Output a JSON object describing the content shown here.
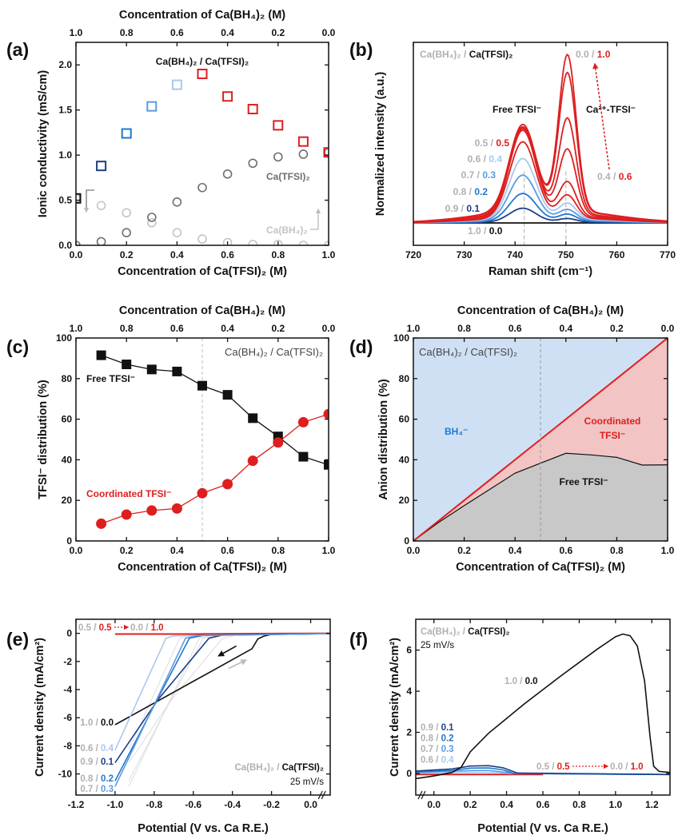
{
  "separator": " / ",
  "chart_data": [
    {
      "panel": "(a)",
      "type": "scatter",
      "xlabel": "Concentration of Ca(TFSI)₂ (M)",
      "top_xlabel": "Concentration of Ca(BH₄)₂ (M)",
      "ylabel": "Ionic conductivity (mS/cm)",
      "xlim": [
        0,
        1
      ],
      "ylim": [
        0,
        2.25
      ],
      "xticks": [
        "0.0",
        "0.2",
        "0.4",
        "0.6",
        "0.8",
        "1.0"
      ],
      "top_xticks": [
        "1.0",
        "0.8",
        "0.6",
        "0.4",
        "0.2",
        "0.0"
      ],
      "yticks": [
        "0.0",
        "0.5",
        "1.0",
        "1.5",
        "2.0"
      ],
      "x": [
        0,
        0.1,
        0.2,
        0.3,
        0.4,
        0.5,
        0.6,
        0.7,
        0.8,
        0.9,
        1.0
      ],
      "series": [
        {
          "name": "Ca(BH₄)₂ / Ca(TFSI)₂",
          "marker": "open-square",
          "values": [
            0.52,
            0.88,
            1.24,
            1.54,
            1.78,
            1.9,
            1.65,
            1.51,
            1.33,
            1.15,
            1.03
          ],
          "colors": [
            "#111111",
            "#1b3f8a",
            "#1f78d0",
            "#5b9be0",
            "#a9c8ee",
            "#dd1f1f",
            "#dd1f1f",
            "#dd1f1f",
            "#dd1f1f",
            "#dd1f1f",
            "#dd1f1f"
          ]
        },
        {
          "name": "Ca(TFSI)₂",
          "marker": "open-circle",
          "color": "#6e6e6e",
          "values": [
            0.0,
            0.04,
            0.14,
            0.31,
            0.48,
            0.64,
            0.79,
            0.91,
            0.98,
            1.01,
            1.03
          ]
        },
        {
          "name": "Ca(BH₄)₂",
          "marker": "open-circle",
          "color": "#c4c4c4",
          "values": [
            0.52,
            0.44,
            0.36,
            0.25,
            0.14,
            0.07,
            0.03,
            0.01,
            0.01,
            0.0,
            0.0
          ]
        }
      ]
    },
    {
      "panel": "(b)",
      "type": "line",
      "xlabel": "Raman shift (cm⁻¹)",
      "ylabel": "Normalized intensity (a.u.)",
      "xlim": [
        720,
        770
      ],
      "ylim": [
        -0.13,
        1.05
      ],
      "xticks": [
        "720",
        "730",
        "740",
        "750",
        "760",
        "770"
      ],
      "yticks": [],
      "legend_title": {
        "bh4": "Ca(BH₄)₂",
        "tfsi": "Ca(TFSI)₂"
      },
      "peaks": {
        "free": {
          "label": "Free TFSI⁻",
          "position": 741.8
        },
        "coordinated": {
          "label": "Ca²⁺-TFSI⁻",
          "position": 750
        }
      },
      "series": [
        {
          "bh4": "1.0",
          "tfsi": "0.0",
          "color": "#111111",
          "free_peak": 0,
          "coordinated_peak": 0,
          "label_shown": true
        },
        {
          "bh4": "0.9",
          "tfsi": "0.1",
          "color": "#1b3f8a",
          "free_peak": 0.08,
          "coordinated_peak": 0.02,
          "label_shown": true
        },
        {
          "bh4": "0.8",
          "tfsi": "0.2",
          "color": "#1f78d0",
          "free_peak": 0.16,
          "coordinated_peak": 0.04,
          "label_shown": true
        },
        {
          "bh4": "0.7",
          "tfsi": "0.3",
          "color": "#5b9be0",
          "free_peak": 0.26,
          "coordinated_peak": 0.06,
          "label_shown": true
        },
        {
          "bh4": "0.6",
          "tfsi": "0.4",
          "color": "#a9c8ee",
          "free_peak": 0.35,
          "coordinated_peak": 0.09,
          "label_shown": true
        },
        {
          "bh4": "0.5",
          "tfsi": "0.5",
          "color": "#dd1f1f",
          "free_peak": 0.44,
          "coordinated_peak": 0.13,
          "label_shown": true
        },
        {
          "bh4": "0.4",
          "tfsi": "0.6",
          "color": "#dd1f1f",
          "free_peak": 0.5,
          "coordinated_peak": 0.2,
          "label_shown": true
        },
        {
          "bh4": "0.3",
          "tfsi": "0.7",
          "color": "#dd1f1f",
          "free_peak": 0.5,
          "coordinated_peak": 0.38,
          "label_shown": false
        },
        {
          "bh4": "0.2",
          "tfsi": "0.8",
          "color": "#dd1f1f",
          "free_peak": 0.5,
          "coordinated_peak": 0.55,
          "label_shown": false
        },
        {
          "bh4": "0.1",
          "tfsi": "0.9",
          "color": "#dd1f1f",
          "free_peak": 0.5,
          "coordinated_peak": 0.8,
          "label_shown": false
        },
        {
          "bh4": "0.0",
          "tfsi": "1.0",
          "color": "#dd1f1f",
          "free_peak": 0.48,
          "coordinated_peak": 0.9,
          "label_shown": true
        }
      ]
    },
    {
      "panel": "(c)",
      "type": "line",
      "xlabel": "Concentration of Ca(TFSI)₂ (M)",
      "top_xlabel": "Concentration of Ca(BH₄)₂ (M)",
      "ylabel": "TFSI⁻ distribution (%)",
      "xlim": [
        0,
        1
      ],
      "ylim": [
        0,
        100
      ],
      "xticks": [
        "0.0",
        "0.2",
        "0.4",
        "0.6",
        "0.8",
        "1.0"
      ],
      "top_xticks": [
        "1.0",
        "0.8",
        "0.6",
        "0.4",
        "0.2",
        "0.0"
      ],
      "yticks": [
        "0",
        "20",
        "40",
        "60",
        "80",
        "100"
      ],
      "annotation": "Ca(BH₄)₂ / Ca(TFSI)₂",
      "reference_line_x": 0.5,
      "x": [
        0.1,
        0.2,
        0.3,
        0.4,
        0.5,
        0.6,
        0.7,
        0.8,
        0.9,
        1.0
      ],
      "series": [
        {
          "name": "Free TFSI⁻",
          "marker": "square",
          "color": "#111111",
          "values": [
            91.5,
            87,
            84.5,
            83.5,
            76.5,
            72,
            60.5,
            51.5,
            41.5,
            37.5
          ]
        },
        {
          "name": "Coordinated TFSI⁻",
          "marker": "circle",
          "color": "#dd1f1f",
          "values": [
            8.5,
            13,
            15,
            16,
            23.5,
            28,
            39.5,
            48.5,
            58.5,
            62.5
          ]
        }
      ]
    },
    {
      "panel": "(d)",
      "type": "area",
      "xlabel": "Concentration of Ca(TFSI)₂ (M)",
      "top_xlabel": "Concentration of Ca(BH₄)₂ (M)",
      "ylabel": "Anion distribution (%)",
      "xlim": [
        0,
        1
      ],
      "ylim": [
        0,
        100
      ],
      "xticks": [
        "0.0",
        "0.2",
        "0.4",
        "0.6",
        "0.8",
        "1.0"
      ],
      "top_xticks": [
        "1.0",
        "0.8",
        "0.6",
        "0.4",
        "0.2",
        "0.0"
      ],
      "yticks": [
        "0",
        "20",
        "40",
        "60",
        "80",
        "100"
      ],
      "annotation": "Ca(BH₄)₂ / Ca(TFSI)₂",
      "reference_line_x": 0.5,
      "x": [
        0,
        0.1,
        0.2,
        0.3,
        0.4,
        0.5,
        0.6,
        0.7,
        0.8,
        0.9,
        1.0
      ],
      "series": [
        {
          "name": "Free TFSI⁻",
          "color": "#c8c8c8",
          "values": [
            0,
            9.2,
            17.4,
            25.4,
            33.4,
            38.3,
            43.2,
            42.4,
            41.2,
            37.4,
            37.5
          ]
        },
        {
          "name": "Coordinated TFSI⁻",
          "label_lines": [
            "Coordinated",
            "TFSI⁻"
          ],
          "color": "#f3c4c4",
          "line_color": "#dd1f1f",
          "values": [
            0,
            10,
            20,
            30,
            40,
            50,
            60,
            70,
            80,
            90,
            100
          ]
        },
        {
          "name": "BH₄⁻",
          "color": "#cfe0f5",
          "label_color": "#1f78d0",
          "values": [
            100,
            100,
            100,
            100,
            100,
            100,
            100,
            100,
            100,
            100,
            100
          ]
        }
      ]
    },
    {
      "panel": "(e)",
      "type": "line",
      "xlabel": "Potential (V vs. Ca R.E.)",
      "ylabel": "Current density (mA/cm²)",
      "xlim": [
        -1.2,
        0.1
      ],
      "ylim": [
        -11.5,
        1
      ],
      "xticks": [
        "-1.2",
        "-1.0",
        "-0.8",
        "-0.6",
        "-0.4",
        "-0.2",
        "0.0"
      ],
      "yticks": [
        "0",
        "-2",
        "-4",
        "-6",
        "-8",
        "-10"
      ],
      "axis_break": "x-right",
      "legend_title": {
        "bh4": "Ca(BH₄)₂",
        "tfsi": "Ca(TFSI)₂"
      },
      "scan_rate": "25 mV/s",
      "red_group": {
        "from": {
          "bh4": "0.5",
          "tfsi": "0.5"
        },
        "to": {
          "bh4": "0.0",
          "tfsi": "1.0"
        },
        "color": "#dd1f1f",
        "points": [
          [
            -1.0,
            -0.05
          ],
          [
            -0.6,
            -0.05
          ],
          [
            -0.3,
            -0.02
          ],
          [
            0.1,
            0.0
          ]
        ]
      },
      "series": [
        {
          "bh4": "1.0",
          "tfsi": "0.0",
          "color": "#111111",
          "points": [
            [
              0.1,
              -0.02
            ],
            [
              -0.2,
              -0.08
            ],
            [
              -0.24,
              -0.2
            ],
            [
              -0.27,
              -0.4
            ],
            [
              -0.3,
              -1.1
            ],
            [
              -1.0,
              -6.5
            ]
          ]
        },
        {
          "bh4": "0.6",
          "tfsi": "0.4",
          "color": "#a9c8ee",
          "points": [
            [
              0.1,
              -0.02
            ],
            [
              -0.7,
              -0.18
            ],
            [
              -0.74,
              -0.35
            ],
            [
              -1.0,
              -8.3
            ]
          ]
        },
        {
          "bh4": "0.9",
          "tfsi": "0.1",
          "color": "#1b3f8a",
          "points": [
            [
              0.1,
              -0.02
            ],
            [
              -0.45,
              -0.12
            ],
            [
              -0.52,
              -0.35
            ],
            [
              -0.78,
              -4.7
            ],
            [
              -1.0,
              -9.2
            ]
          ]
        },
        {
          "bh4": "0.8",
          "tfsi": "0.2",
          "color": "#1f78d0",
          "points": [
            [
              0.1,
              -0.02
            ],
            [
              -0.55,
              -0.15
            ],
            [
              -0.62,
              -0.35
            ],
            [
              -0.78,
              -4.6
            ],
            [
              -1.0,
              -10.5
            ]
          ]
        },
        {
          "bh4": "0.7",
          "tfsi": "0.3",
          "color": "#5b9be0",
          "points": [
            [
              0.1,
              -0.02
            ],
            [
              -0.58,
              -0.15
            ],
            [
              -0.64,
              -0.35
            ],
            [
              -0.78,
              -4.5
            ],
            [
              -1.0,
              -10.9
            ]
          ]
        }
      ]
    },
    {
      "panel": "(f)",
      "type": "line",
      "xlabel": "Potential (V vs. Ca R.E.)",
      "ylabel": "Current density (mA/cm²)",
      "xlim": [
        -0.1,
        1.3
      ],
      "ylim": [
        -1.05,
        7.5
      ],
      "xticks": [
        "0.0",
        "0.2",
        "0.4",
        "0.6",
        "0.8",
        "1.0",
        "1.2"
      ],
      "yticks": [
        "0",
        "2",
        "4",
        "6"
      ],
      "axis_break": "x-left",
      "legend_title": {
        "bh4": "Ca(BH₄)₂",
        "tfsi": "Ca(TFSI)₂"
      },
      "scan_rate": "25 mV/s",
      "red_group": {
        "from": {
          "bh4": "0.5",
          "tfsi": "0.5"
        },
        "to": {
          "bh4": "0.0",
          "tfsi": "1.0"
        },
        "color": "#dd1f1f",
        "points": [
          [
            -0.1,
            -0.05
          ],
          [
            0.6,
            -0.05
          ]
        ]
      },
      "series": [
        {
          "bh4": "1.0",
          "tfsi": "0.0",
          "color": "#111111",
          "points": [
            [
              -0.1,
              -0.25
            ],
            [
              0.0,
              -0.12
            ],
            [
              0.1,
              0.05
            ],
            [
              0.15,
              0.3
            ],
            [
              0.2,
              1.05
            ],
            [
              0.3,
              1.95
            ],
            [
              0.5,
              3.4
            ],
            [
              0.7,
              4.75
            ],
            [
              0.9,
              6.05
            ],
            [
              1.0,
              6.65
            ],
            [
              1.04,
              6.78
            ],
            [
              1.08,
              6.7
            ],
            [
              1.12,
              6.2
            ],
            [
              1.16,
              4.5
            ],
            [
              1.19,
              1.8
            ],
            [
              1.21,
              0.35
            ],
            [
              1.24,
              0.1
            ],
            [
              1.3,
              0.05
            ]
          ]
        },
        {
          "bh4": "0.9",
          "tfsi": "0.1",
          "color": "#1b3f8a",
          "points": [
            [
              -0.1,
              0.12
            ],
            [
              0.1,
              0.22
            ],
            [
              0.2,
              0.36
            ],
            [
              0.3,
              0.38
            ],
            [
              0.38,
              0.28
            ],
            [
              0.46,
              0.02
            ],
            [
              1.3,
              -0.05
            ]
          ]
        },
        {
          "bh4": "0.8",
          "tfsi": "0.2",
          "color": "#1f78d0",
          "points": [
            [
              -0.1,
              0.08
            ],
            [
              0.1,
              0.15
            ],
            [
              0.2,
              0.26
            ],
            [
              0.3,
              0.27
            ],
            [
              0.38,
              0.18
            ],
            [
              0.44,
              0.0
            ],
            [
              1.3,
              -0.05
            ]
          ]
        },
        {
          "bh4": "0.7",
          "tfsi": "0.3",
          "color": "#5b9be0",
          "points": [
            [
              -0.1,
              0.05
            ],
            [
              0.2,
              0.14
            ],
            [
              0.3,
              0.15
            ],
            [
              0.4,
              0.05
            ],
            [
              0.45,
              0.0
            ],
            [
              1.3,
              -0.05
            ]
          ]
        },
        {
          "bh4": "0.6",
          "tfsi": "0.4",
          "color": "#a9c8ee",
          "points": [
            [
              -0.1,
              0.02
            ],
            [
              0.2,
              0.06
            ],
            [
              0.35,
              0.05
            ],
            [
              0.42,
              0.0
            ],
            [
              1.3,
              -0.05
            ]
          ]
        }
      ]
    }
  ]
}
